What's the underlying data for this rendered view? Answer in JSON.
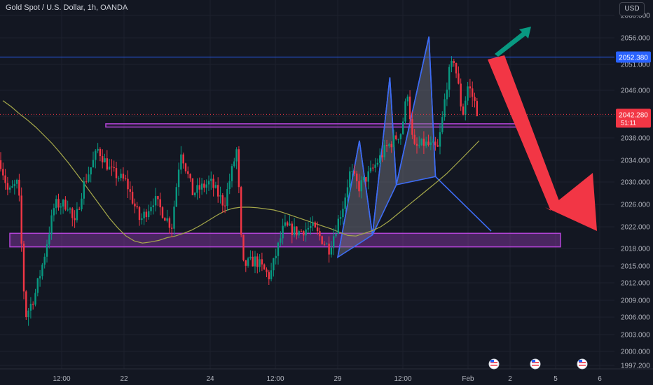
{
  "header": {
    "title": "Gold Spot / U.S. Dollar, 1h, OANDA",
    "currency_button": "USD"
  },
  "price_tags": {
    "resistance": "2052.380",
    "last_price": "2042.280",
    "countdown": "51:11"
  },
  "colors": {
    "background": "#131722",
    "up_candle": "#089981",
    "down_candle": "#f23645",
    "moving_average": "#a5a84a",
    "pattern_outline": "#3d6cf5",
    "zone": "#b243d6",
    "resistance_line": "#2962ff",
    "big_arrow": "#f23645",
    "small_arrow": "#089981"
  },
  "icons": [
    "us-flag-event-icon",
    "us-flag-event-icon",
    "us-flag-event-icon"
  ],
  "chart_data": {
    "type": "candlestick",
    "title": "Gold Spot / U.S. Dollar, 1h, OANDA",
    "y_ticks": [
      1997.2,
      2000.0,
      2003.0,
      2006.0,
      2009.0,
      2012.0,
      2015.0,
      2018.0,
      2022.0,
      2026.0,
      2030.0,
      2034.0,
      2038.0,
      2042.0,
      2046.0,
      2051.0,
      2056.0,
      2060.0
    ],
    "y_tick_labels": [
      "1997.200",
      "2000.000",
      "2003.000",
      "2006.000",
      "2009.000",
      "2012.000",
      "2015.000",
      "2018.000",
      "2022.000",
      "2026.000",
      "2030.000",
      "2034.000",
      "2038.000",
      "2042.000",
      "2046.000",
      "2051.000",
      "2056.000",
      "2060.000"
    ],
    "x_ticks": [
      "12:00",
      "22",
      "24",
      "12:00",
      "29",
      "12:00",
      "Feb",
      "2",
      "5",
      "6"
    ],
    "resistance_level": 2052.38,
    "last_price": 2042.28,
    "upper_zone": [
      2040.0,
      2040.6
    ],
    "lower_zone": [
      2018.3,
      2020.8
    ],
    "harmonic_pattern": {
      "points": [
        [
          29,
          2016.5
        ],
        [
          29.5,
          2037.5
        ],
        [
          29.8,
          2020.5
        ],
        [
          30.2,
          2048.5
        ],
        [
          30.35,
          2029.5
        ],
        [
          31.1,
          2056.2
        ],
        [
          31.25,
          2031.0
        ],
        [
          32.55,
          2021.2
        ]
      ]
    },
    "moving_average": true,
    "grid": true,
    "series": [
      {
        "values": [
          2044.4,
          2043.5,
          2042.4,
          2041.3,
          2040.0,
          2038.5,
          2037.0,
          2035.3,
          2033.5,
          2031.5,
          2029.5,
          2027.5,
          2025.5,
          2023.5,
          2021.8,
          2020.3,
          2019.4,
          2019.0,
          2019.2,
          2019.5,
          2020.0,
          2020.3,
          2020.8,
          2021.4,
          2022.2,
          2023.1,
          2024.0,
          2024.8,
          2025.3,
          2025.5,
          2025.5,
          2025.4,
          2025.2,
          2025.0,
          2024.6,
          2024.1,
          2023.6,
          2023.1,
          2022.6,
          2022.1,
          2021.6,
          2021.0,
          2020.4,
          2020.3,
          2020.8,
          2021.3,
          2022.0,
          2023.0,
          2024.2,
          2025.4,
          2026.6,
          2027.8,
          2029.0,
          2030.2,
          2031.5,
          2033.0,
          2034.5,
          2036.0,
          2037.5
        ]
      }
    ]
  }
}
